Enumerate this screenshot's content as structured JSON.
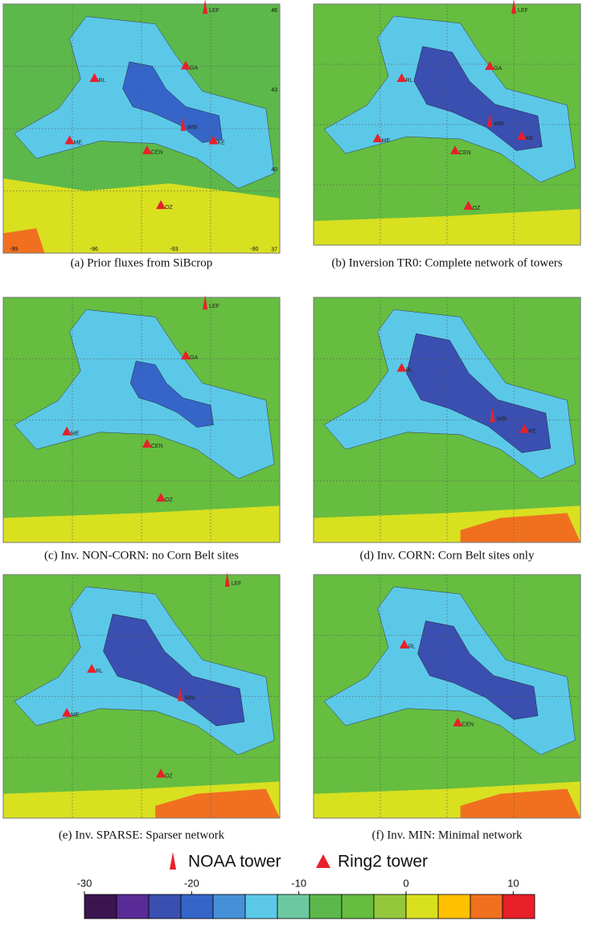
{
  "panels": [
    {
      "caption": "(a) Prior fluxes from SiBcrop",
      "sites": [
        "LEF",
        "GA",
        "RL",
        "WBI",
        "ME",
        "KE",
        "CEN",
        "OZ"
      ],
      "lat_labels": [
        "46",
        "43",
        "40",
        "37"
      ],
      "lon_labels": [
        "-99",
        "-96",
        "-93",
        "-90"
      ]
    },
    {
      "caption": "(b) Inversion TR0: Complete network of towers",
      "sites": [
        "LEF",
        "GA",
        "RL",
        "WBI",
        "ME",
        "KE",
        "CEN",
        "OZ"
      ]
    },
    {
      "caption": "(c) Inv. NON-CORN: no Corn Belt sites",
      "sites": [
        "LEF",
        "GA",
        "ME",
        "CEN",
        "OZ"
      ]
    },
    {
      "caption": "(d) Inv. CORN: Corn Belt sites only",
      "sites": [
        "RL",
        "WBI",
        "KE"
      ]
    },
    {
      "caption": "(e) Inv. SPARSE: Sparser network",
      "sites": [
        "LEF",
        "RL",
        "WBI",
        "ME",
        "OZ"
      ]
    },
    {
      "caption": "(f) Inv. MIN: Minimal network",
      "sites": [
        "RL",
        "CEN"
      ]
    }
  ],
  "legend": [
    "NOAA tower",
    "Ring2 tower"
  ],
  "colorbar": {
    "lim": [
      -30,
      12
    ],
    "ticks": [
      -30,
      -20,
      -10,
      0,
      10
    ],
    "bounds": [
      -30,
      -27,
      -24,
      -21,
      -18,
      -15,
      -12,
      -9,
      -6,
      -3,
      0,
      3,
      6,
      9,
      12
    ],
    "colors": [
      "#3b1450",
      "#5a2a96",
      "#3a4fb0",
      "#3565c8",
      "#4590d8",
      "#5cc8e8",
      "#6cc8a0",
      "#5cb84a",
      "#66bd40",
      "#94c83c",
      "#d8e020",
      "#ffc000",
      "#f07020",
      "#e82028"
    ]
  }
}
